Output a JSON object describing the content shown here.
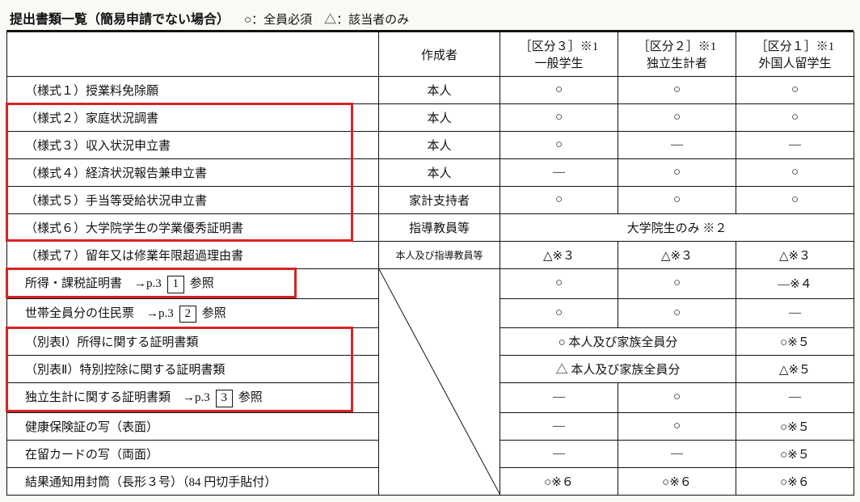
{
  "title": "提出書類一覧（簡易申請でない場合）",
  "legend": "○：全員必須　△：該当者のみ",
  "headers": {
    "creator": "作成者",
    "col3_top": "［区分３］※1",
    "col3_bot": "一般学生",
    "col4_top": "［区分２］※1",
    "col4_bot": "独立生計者",
    "col5_top": "［区分１］※1",
    "col5_bot": "外国人留学生"
  },
  "rows": [
    {
      "doc": "（様式１）授業料免除願",
      "creator": "本人",
      "c3": "○",
      "c4": "○",
      "c5": "○"
    },
    {
      "doc": "（様式２）家庭状況調書",
      "creator": "本人",
      "c3": "○",
      "c4": "○",
      "c5": "○"
    },
    {
      "doc": "（様式３）収入状況申立書",
      "creator": "本人",
      "c3": "○",
      "c4": "―",
      "c5": "―"
    },
    {
      "doc": "（様式４）経済状況報告兼申立書",
      "creator": "本人",
      "c3": "―",
      "c4": "○",
      "c5": "○"
    },
    {
      "doc": "（様式５）手当等受給状況申立書",
      "creator": "家計支持者",
      "c3": "○",
      "c4": "○",
      "c5": "○"
    },
    {
      "doc": "（様式６）大学院学生の学業優秀証明書",
      "creator": "指導教員等",
      "merged": "大学院生のみ ※２"
    },
    {
      "doc": "（様式７）留年又は修業年限超過理由書",
      "creator": "本人及び指導教員等",
      "creator_small": true,
      "c3": "△※３",
      "c4": "△※３",
      "c5": "△※３"
    },
    {
      "doc": "所得・課税証明書　→p.3 [1] 参照",
      "boxed": "1",
      "c3": "○",
      "c4": "○",
      "c5": "―※４"
    },
    {
      "doc": "世帯全員分の住民票　→p.3 [2] 参照",
      "boxed": "2",
      "c3": "○",
      "c4": "○",
      "c5": "―"
    },
    {
      "doc": "（別表Ⅰ）所得に関する証明書類",
      "merge34": "○ 本人及び家族全員分",
      "c5": "○※５"
    },
    {
      "doc": "（別表Ⅱ）特別控除に関する証明書類",
      "merge34": "△ 本人及び家族全員分",
      "c5": "△※５"
    },
    {
      "doc": "独立生計に関する証明書類　→p.3 [3] 参照",
      "boxed": "3",
      "c3": "―",
      "c4": "○",
      "c5": "―"
    },
    {
      "doc": "健康保険証の写（表面）",
      "c3": "―",
      "c4": "○",
      "c5": "○※５"
    },
    {
      "doc": "在留カードの写（両面）",
      "c3": "―",
      "c4": "―",
      "c5": "○※５"
    },
    {
      "doc": "結果通知用封筒（長形３号）（84 円切手貼付）",
      "c3": "○※６",
      "c4": "○※６",
      "c5": "○※６"
    }
  ]
}
